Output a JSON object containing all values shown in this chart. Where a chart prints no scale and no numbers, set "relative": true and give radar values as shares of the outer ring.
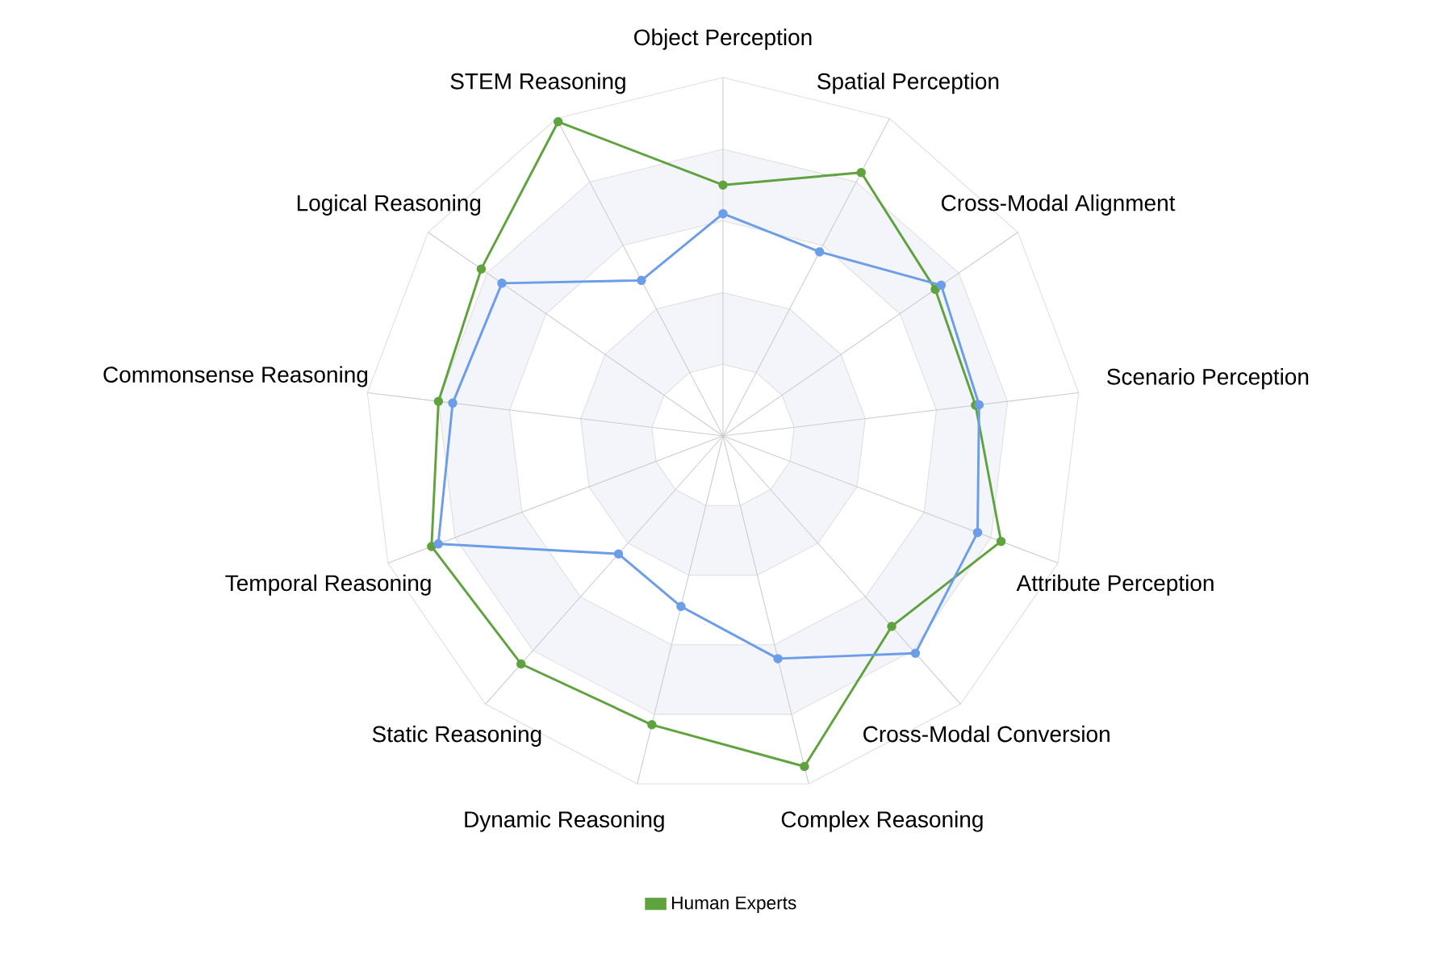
{
  "chart_data": {
    "type": "radar",
    "relative": true,
    "grid": true,
    "legend": "bottom",
    "marker": "circle",
    "categories": [
      "Object Perception",
      "Spatial Perception",
      "Cross-Modal Alignment",
      "Scenario Perception",
      "Attribute Perception",
      "Cross-Modal Conversion",
      "Complex Reasoning",
      "Dynamic Reasoning",
      "Static Reasoning",
      "Temporal Reasoning",
      "Commonsense Reasoning",
      "Logical Reasoning",
      "STEM Reasoning"
    ],
    "series": [
      {
        "name": "Human Experts",
        "color": "#5fa33f",
        "values": [
          0.7,
          0.83,
          0.72,
          0.71,
          0.83,
          0.71,
          0.95,
          0.83,
          0.85,
          0.87,
          0.8,
          0.82,
          0.99
        ]
      },
      {
        "color": "#6b9de8",
        "values": [
          0.62,
          0.58,
          0.74,
          0.72,
          0.76,
          0.81,
          0.64,
          0.49,
          0.44,
          0.85,
          0.76,
          0.75,
          0.49
        ]
      }
    ]
  }
}
